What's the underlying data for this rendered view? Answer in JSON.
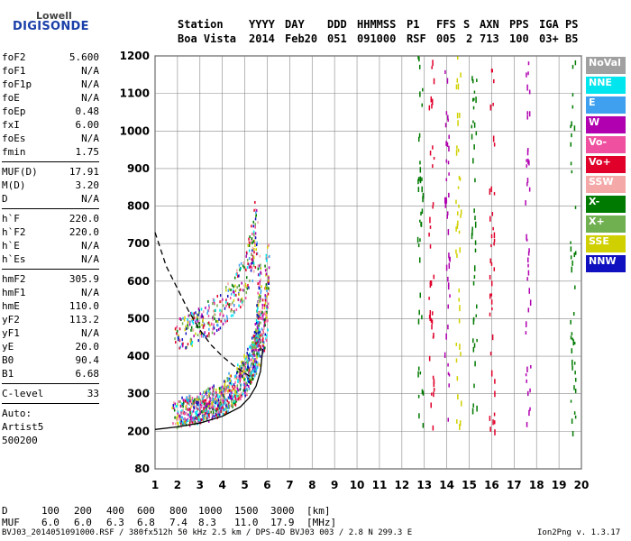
{
  "logo": {
    "line1": "Lowell",
    "line2": "DIGISONDE"
  },
  "header": {
    "row1": [
      "Station",
      "YYYY",
      "DAY",
      "DDD",
      "HHMMSS",
      "P1",
      "FFS",
      "S",
      "AXN",
      "PPS",
      "IGA",
      "PS"
    ],
    "row2": [
      "Boa Vista",
      "2014",
      "Feb20",
      "051",
      "091000",
      "RSF",
      "005",
      "2",
      "713",
      "100",
      "03+",
      "B5"
    ]
  },
  "params": {
    "group1": [
      {
        "name": "foF2",
        "value": "5.600"
      },
      {
        "name": "foF1",
        "value": "N/A"
      },
      {
        "name": "foF1p",
        "value": "N/A"
      },
      {
        "name": "foE",
        "value": "N/A"
      },
      {
        "name": "foEp",
        "value": "0.48"
      },
      {
        "name": "fxI",
        "value": "6.00"
      },
      {
        "name": "foEs",
        "value": "N/A"
      },
      {
        "name": "fmin",
        "value": "1.75"
      }
    ],
    "group2": [
      {
        "name": "MUF(D)",
        "value": "17.91"
      },
      {
        "name": "M(D)",
        "value": "3.20"
      },
      {
        "name": "D",
        "value": "N/A"
      }
    ],
    "group3": [
      {
        "name": "h`F",
        "value": "220.0"
      },
      {
        "name": "h`F2",
        "value": "220.0"
      },
      {
        "name": "h`E",
        "value": "N/A"
      },
      {
        "name": "h`Es",
        "value": "N/A"
      }
    ],
    "group4": [
      {
        "name": "hmF2",
        "value": "305.9"
      },
      {
        "name": "hmF1",
        "value": "N/A"
      },
      {
        "name": "hmE",
        "value": "110.0"
      },
      {
        "name": "yF2",
        "value": "113.2"
      },
      {
        "name": "yF1",
        "value": "N/A"
      },
      {
        "name": "yE",
        "value": "20.0"
      },
      {
        "name": "B0",
        "value": "90.4"
      },
      {
        "name": "B1",
        "value": "6.68"
      }
    ],
    "clevel": {
      "name": "C-level",
      "value": "33"
    },
    "auto": [
      "Auto:",
      "Artist5",
      "500200"
    ]
  },
  "legend": [
    {
      "label": "NoVal",
      "color": "#a0a0a0"
    },
    {
      "label": "NNE",
      "color": "#00e5ee"
    },
    {
      "label": "E",
      "color": "#3fa0f0"
    },
    {
      "label": "W",
      "color": "#b000b0"
    },
    {
      "label": "Vo-",
      "color": "#f050a0"
    },
    {
      "label": "Vo+",
      "color": "#e0002a"
    },
    {
      "label": "SSW",
      "color": "#f5a8a8"
    },
    {
      "label": "X-",
      "color": "#007a00"
    },
    {
      "label": "X+",
      "color": "#70b050"
    },
    {
      "label": "SSE",
      "color": "#d0d000"
    },
    {
      "label": "NNW",
      "color": "#1010c0"
    }
  ],
  "muf_table": {
    "d_label": "D",
    "d_values": [
      "100",
      "200",
      "400",
      "600",
      "800",
      "1000",
      "1500",
      "3000"
    ],
    "d_unit": "[km]",
    "muf_label": "MUF",
    "muf_values": [
      "6.0",
      "6.0",
      "6.3",
      "6.8",
      "7.4",
      "8.3",
      "11.0",
      "17.9"
    ],
    "muf_unit": "[MHz]"
  },
  "footer": {
    "left": "BVJ03_2014051091000.RSF / 380fx512h 50 kHz 2.5 km / DPS-4D BVJ03 003 / 2.8 N 299.3 E",
    "right": "Ion2Png v. 1.3.17"
  },
  "chart_data": {
    "type": "scatter",
    "xlim": [
      1,
      20
    ],
    "ylim": [
      80,
      1200
    ],
    "x_ticks": [
      1,
      2,
      3,
      4,
      5,
      6,
      7,
      8,
      9,
      10,
      11,
      12,
      13,
      14,
      15,
      16,
      17,
      18,
      19,
      20
    ],
    "y_ticks": [
      80,
      200,
      300,
      400,
      500,
      600,
      700,
      800,
      900,
      1000,
      1100,
      1200
    ],
    "grid": true,
    "legend_placement": "right",
    "o_trace": [
      [
        1.8,
        232
      ],
      [
        2.5,
        240
      ],
      [
        3.0,
        247
      ],
      [
        3.5,
        256
      ],
      [
        4.0,
        270
      ],
      [
        4.5,
        292
      ],
      [
        5.0,
        330
      ],
      [
        5.3,
        368
      ],
      [
        5.5,
        410
      ],
      [
        5.6,
        470
      ],
      [
        5.65,
        560
      ]
    ],
    "x_trace": [
      [
        2.0,
        240
      ],
      [
        2.8,
        252
      ],
      [
        3.5,
        265
      ],
      [
        4.2,
        290
      ],
      [
        4.8,
        320
      ],
      [
        5.3,
        370
      ],
      [
        5.7,
        420
      ],
      [
        5.9,
        480
      ],
      [
        6.0,
        600
      ]
    ],
    "f2_high_trace": [
      [
        1.9,
        440
      ],
      [
        2.5,
        455
      ],
      [
        3.0,
        470
      ],
      [
        3.5,
        490
      ],
      [
        4.0,
        510
      ],
      [
        4.5,
        545
      ],
      [
        5.0,
        590
      ],
      [
        5.3,
        650
      ],
      [
        5.5,
        720
      ]
    ],
    "profile_solid": [
      [
        1,
        205
      ],
      [
        2,
        212
      ],
      [
        3,
        222
      ],
      [
        4,
        240
      ],
      [
        4.8,
        265
      ],
      [
        5.2,
        290
      ],
      [
        5.5,
        320
      ],
      [
        5.7,
        360
      ],
      [
        5.8,
        420
      ]
    ],
    "profile_dashed": [
      [
        1,
        730
      ],
      [
        1.5,
        640
      ],
      [
        2,
        580
      ],
      [
        2.5,
        520
      ],
      [
        3,
        470
      ],
      [
        3.5,
        430
      ],
      [
        4,
        400
      ],
      [
        4.5,
        375
      ],
      [
        5,
        355
      ],
      [
        5.4,
        340
      ]
    ],
    "noise_columns": [
      {
        "x": 12.8,
        "color": "#007a00"
      },
      {
        "x": 13.3,
        "color": "#e0002a"
      },
      {
        "x": 14.0,
        "color": "#b000b0"
      },
      {
        "x": 14.5,
        "color": "#d0d000"
      },
      {
        "x": 15.2,
        "color": "#007a00"
      },
      {
        "x": 16.0,
        "color": "#e0002a"
      },
      {
        "x": 17.6,
        "color": "#b000b0"
      },
      {
        "x": 19.6,
        "color": "#007a00"
      }
    ]
  }
}
